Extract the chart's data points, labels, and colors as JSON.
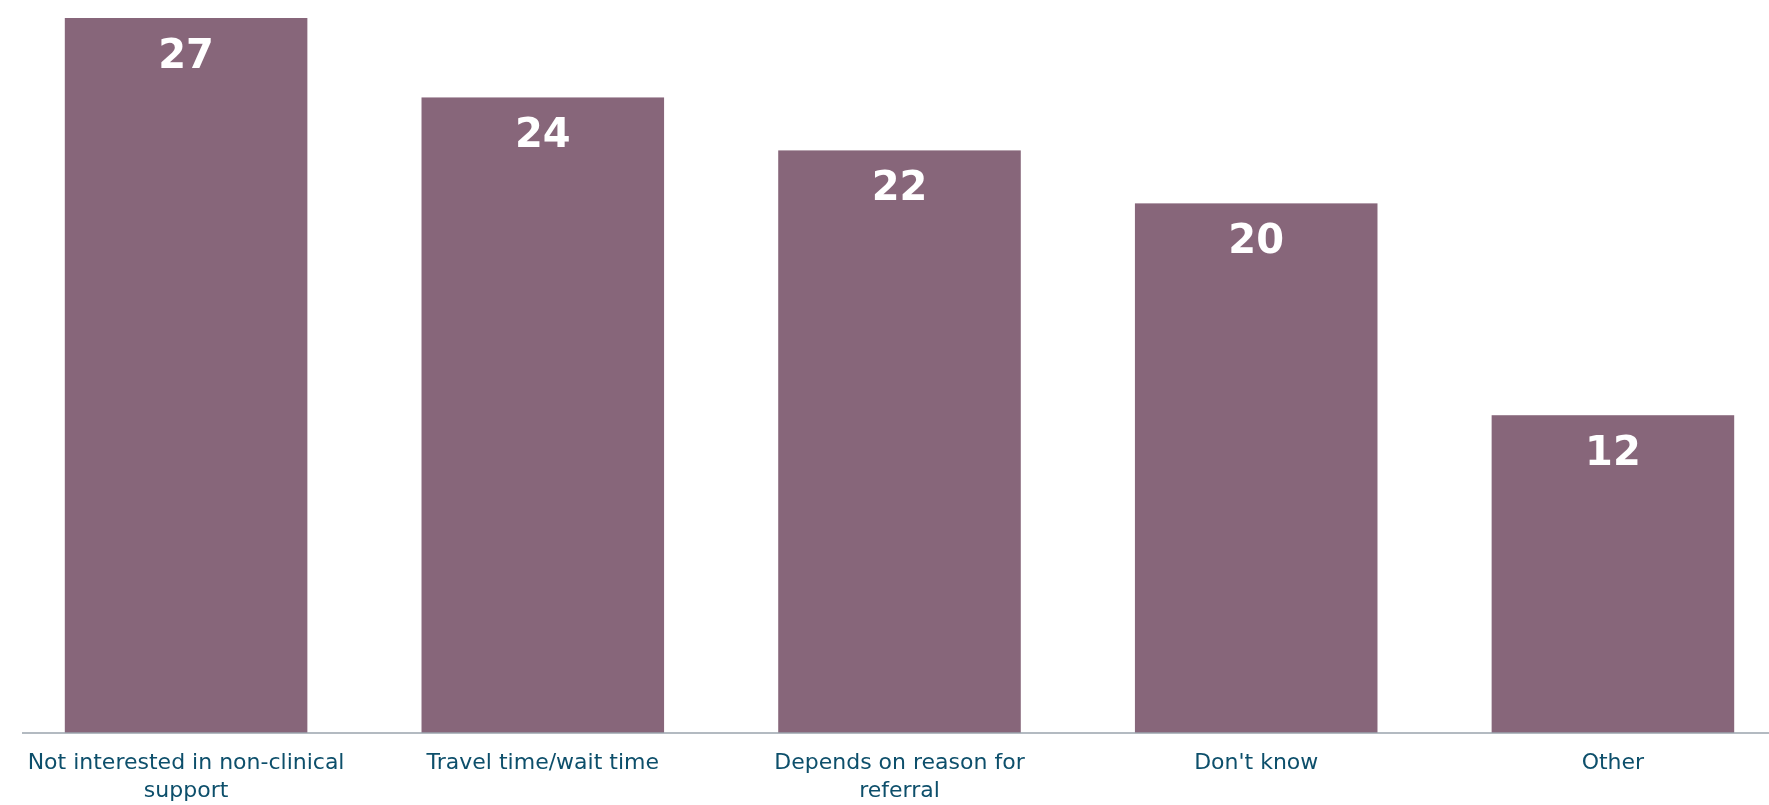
{
  "chart_data": {
    "type": "bar",
    "categories": [
      "Not interested in non-clinical support",
      "Travel time/wait time",
      "Depends on reason for referral",
      "Don't know",
      "Other"
    ],
    "values": [
      27,
      24,
      22,
      20,
      12
    ],
    "color": "#87667a",
    "ylim": [
      0,
      27
    ],
    "data_labels": true
  }
}
